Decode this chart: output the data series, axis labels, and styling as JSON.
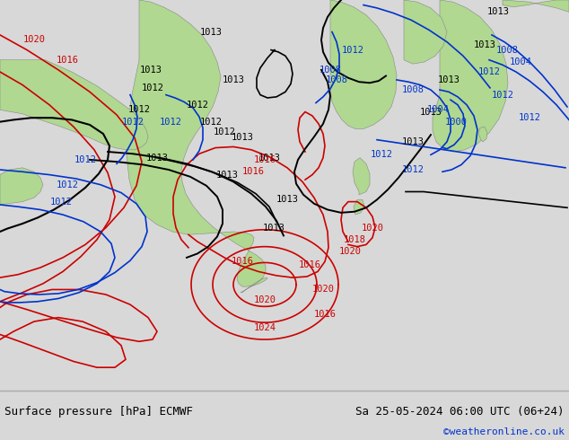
{
  "title_left": "Surface pressure [hPa] ECMWF",
  "title_right": "Sa 25-05-2024 06:00 UTC (06+24)",
  "copyright": "©weatheronline.co.uk",
  "bg_color": "#d8d8d8",
  "ocean_color": "#d4d4d4",
  "land_color": "#b0d890",
  "font_size_title": 9,
  "font_size_copy": 8,
  "black_color": "#000000",
  "red_color": "#cc0000",
  "blue_color": "#0033cc",
  "gray_color": "#888888",
  "fig_width": 6.34,
  "fig_height": 4.9,
  "dpi": 100
}
